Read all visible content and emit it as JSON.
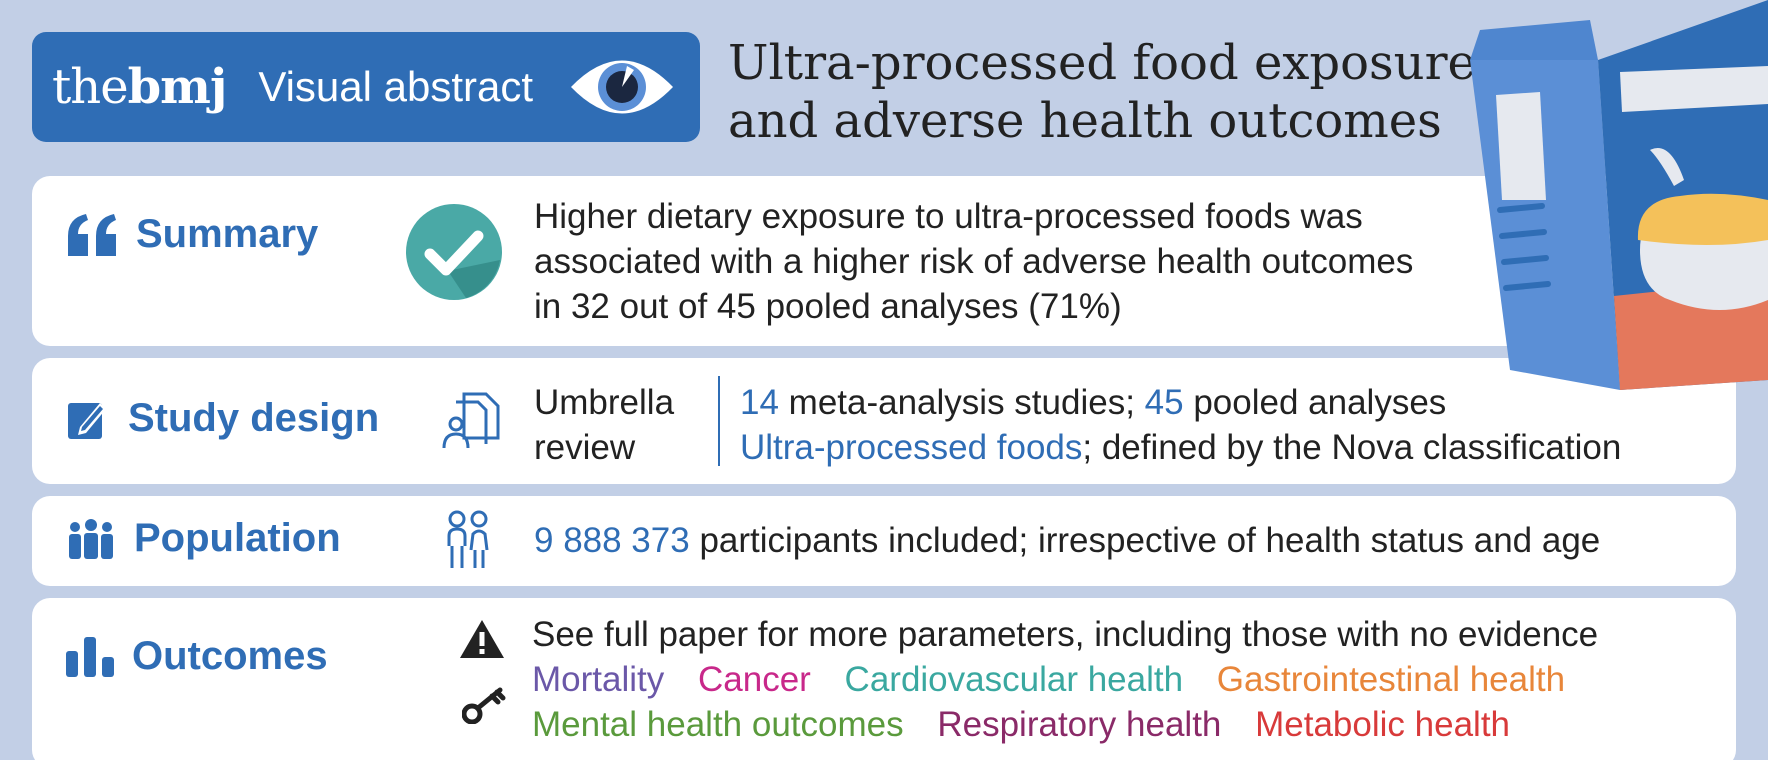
{
  "header": {
    "logo_prefix": "the",
    "logo_brand": "bmj",
    "subtitle": "Visual abstract",
    "title_line1": "Ultra-processed food exposure",
    "title_line2": "and adverse health outcomes"
  },
  "summary": {
    "label": "Summary",
    "line1": "Higher dietary exposure to ultra-processed foods was",
    "line2": "associated with a higher risk of adverse health outcomes",
    "line3": "in 32 out of 45 pooled analyses (71%)"
  },
  "study_design": {
    "label": "Study design",
    "type_line1": "Umbrella",
    "type_line2": "review",
    "studies_count": "14",
    "studies_text": " meta-analysis studies; ",
    "pooled_count": "45",
    "pooled_text": " pooled analyses",
    "exposure": "Ultra-processed foods",
    "exposure_text": "; defined by the Nova classification"
  },
  "population": {
    "label": "Population",
    "count": "9 888 373",
    "text": " participants included; irrespective of health status and age"
  },
  "outcomes": {
    "label": "Outcomes",
    "note": "See full paper for more parameters, including those with no evidence",
    "items": [
      "Mortality",
      "Cancer",
      "Cardiovascular health",
      "Gastrointestinal health",
      "Mental health outcomes",
      "Respiratory health",
      "Metabolic health"
    ]
  },
  "colors": {
    "accent_blue": "#2f6db5",
    "background": "#c2cfe6",
    "check_teal": "#4aa9a6",
    "mortality": "#6b58a8",
    "cancer": "#c8288a",
    "cardiovascular": "#3aa8a0",
    "gastrointestinal": "#e8863a",
    "mental": "#5a9a3c",
    "respiratory": "#8a2a68",
    "metabolic": "#d83a3a"
  }
}
